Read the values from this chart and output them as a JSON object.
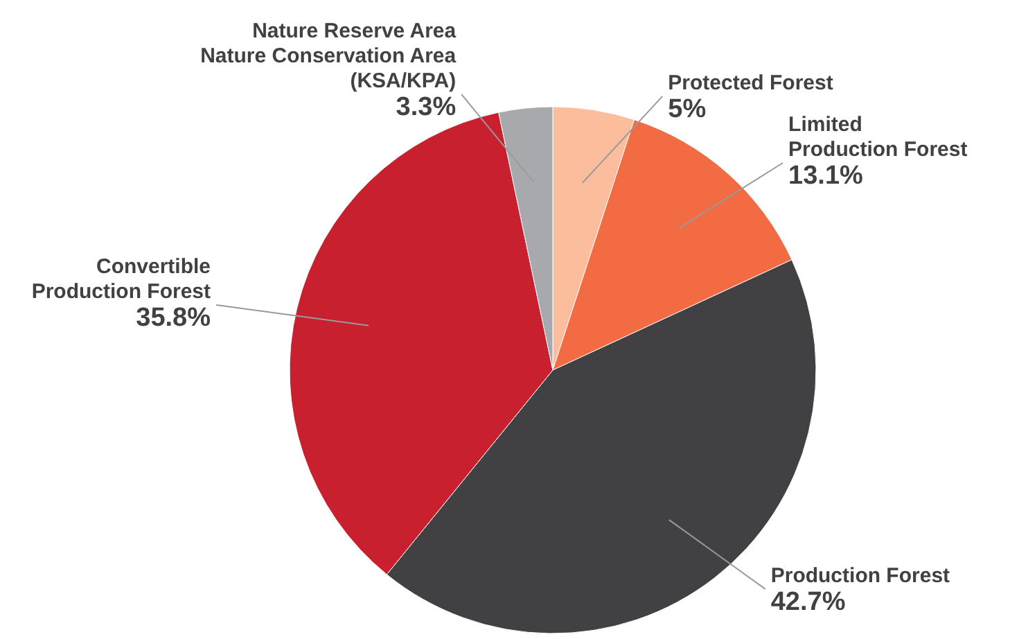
{
  "chart_data": {
    "type": "pie",
    "categories": [
      "Protected Forest",
      "Limited\nProduction Forest",
      "Production Forest",
      "Convertible\nProduction Forest",
      "Nature Reserve Area\nNature Conservation Area\n(KSA/KPA)"
    ],
    "values": [
      5,
      13.1,
      42.7,
      35.8,
      3.3
    ],
    "value_labels": [
      "5%",
      "13.1%",
      "42.7%",
      "35.8%",
      "3.3%"
    ],
    "colors": [
      "#fbbd9c",
      "#f26b43",
      "#414042",
      "#c8202f",
      "#a7a9ac"
    ]
  }
}
